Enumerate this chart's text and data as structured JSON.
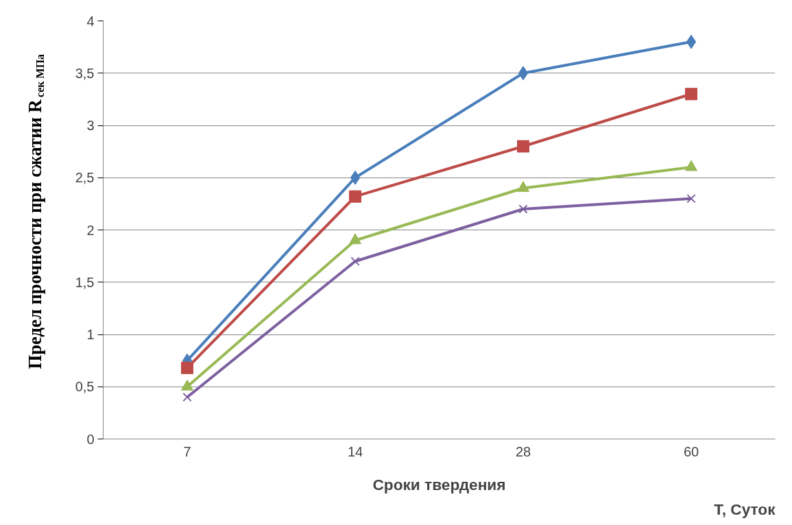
{
  "chart_data": {
    "type": "line",
    "xlabel": "Сроки твердения",
    "ylabel": "Предел прочности при сжатии R$_{сек МПа}$",
    "annotations": [
      "Т, Суток"
    ],
    "categories": [
      "7",
      "14",
      "28",
      "60"
    ],
    "series": [
      {
        "color": "#4a7ebb",
        "values": [
          0.75,
          2.5,
          3.5,
          3.8
        ],
        "marker": "diamond"
      },
      {
        "color": "#be4b48",
        "values": [
          0.68,
          2.32,
          2.8,
          3.3
        ],
        "marker": "square"
      },
      {
        "color": "#98b954",
        "values": [
          0.5,
          1.9,
          2.4,
          2.6
        ],
        "marker": "triangle"
      },
      {
        "color": "#7d60a0",
        "values": [
          0.4,
          1.7,
          2.2,
          2.3
        ],
        "marker": "x"
      }
    ],
    "ylim": [
      0,
      4
    ],
    "yticks": [
      0,
      {
        "value": 0.5,
        "label": "0,5"
      },
      1,
      {
        "value": 1.5,
        "label": "1,5"
      },
      2,
      {
        "value": 2.5,
        "label": "2,5"
      },
      3,
      {
        "value": 3.5,
        "label": "3,5"
      },
      4
    ],
    "grid": "y",
    "line_style": "solid"
  }
}
